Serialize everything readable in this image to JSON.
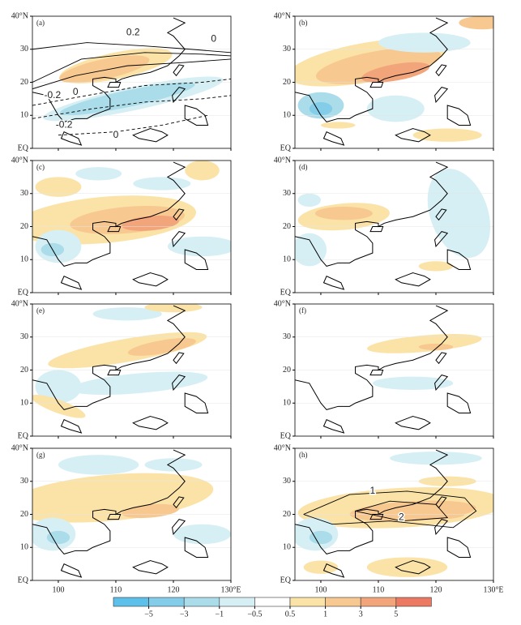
{
  "panels": [
    {
      "label": "(a)",
      "contour_labels": [
        "0.2",
        "0",
        "-0.2",
        "0",
        "-0.2",
        "0"
      ]
    },
    {
      "label": "(b)"
    },
    {
      "label": "(c)"
    },
    {
      "label": "(d)"
    },
    {
      "label": "(e)"
    },
    {
      "label": "(f)"
    },
    {
      "label": "(g)"
    },
    {
      "label": "(h)",
      "contour_labels": [
        "1",
        "2"
      ]
    }
  ],
  "axes": {
    "xlim": [
      95.5,
      130
    ],
    "ylim": [
      0,
      40
    ],
    "xticks": [
      100,
      110,
      120,
      {
        "value": 130,
        "label": "130°E"
      }
    ],
    "yticks": [
      {
        "value": 0,
        "label": "EQ"
      },
      10,
      20,
      30,
      {
        "value": 40,
        "label": "40°N"
      }
    ]
  },
  "colorbar": {
    "ticks": [
      {
        "value": -5,
        "label": "−5"
      },
      {
        "value": -3,
        "label": "−3"
      },
      {
        "value": -1,
        "label": "−1"
      },
      {
        "value": -0.5,
        "label": "−0.5"
      },
      0.5,
      1,
      3,
      5
    ],
    "colors": [
      "#5cc0ea",
      "#83cde9",
      "#aadcea",
      "#d6eff4",
      "#ffffff",
      "#fbe3a8",
      "#f7c88f",
      "#f2a47b",
      "#ec7a62"
    ]
  }
}
